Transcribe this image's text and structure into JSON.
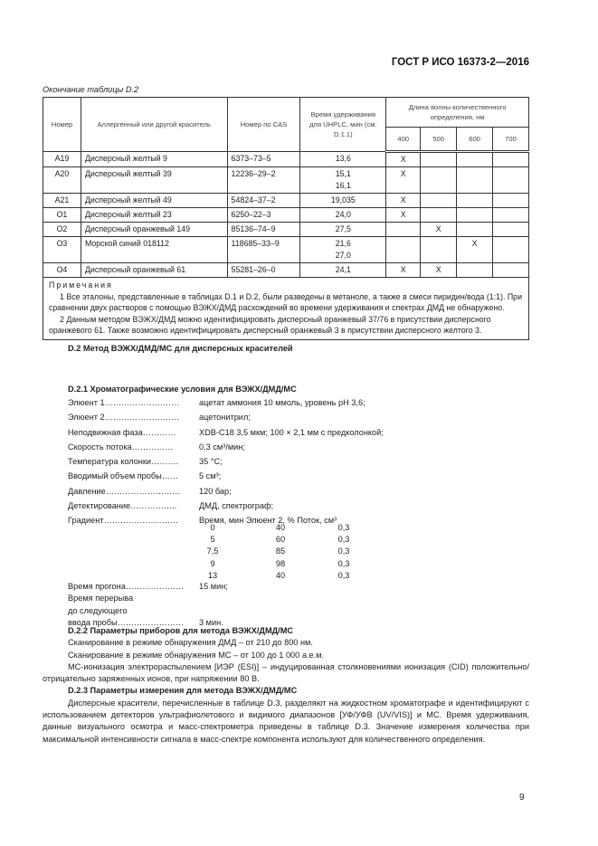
{
  "header": "ГОСТ Р ИСО 16373-2—2016",
  "caption": "Окончание таблицы D.2",
  "table": {
    "headers": {
      "num": "Номер",
      "dye": "Аллергенный или другой краситель",
      "cas": "Номер по CAS",
      "time": "Время удерживания для UHPLC, мин (см. D.1.1)",
      "wave": "Длина волны количественного определения, нм",
      "w400": "400",
      "w500": "500",
      "w600": "600",
      "w700": "700"
    },
    "rows": [
      {
        "num": "A19",
        "dye": "Дисперсный желтый 9",
        "cas": "6373–73–5",
        "time": "13,6",
        "w400": "X",
        "w500": "",
        "w600": "",
        "w700": ""
      },
      {
        "num": "A20",
        "dye": "Дисперсный желтый 39",
        "cas": "12236–29–2",
        "time": "15,1\n16,1",
        "w400": "X",
        "w500": "",
        "w600": "",
        "w700": ""
      },
      {
        "num": "A21",
        "dye": "Дисперсный желтый 49",
        "cas": "54824–37–2",
        "time": "19,035",
        "w400": "X",
        "w500": "",
        "w600": "",
        "w700": ""
      },
      {
        "num": "O1",
        "dye": "Дисперсный желтый 23",
        "cas": "6250–22–3",
        "time": "24,0",
        "w400": "X",
        "w500": "",
        "w600": "",
        "w700": ""
      },
      {
        "num": "O2",
        "dye": "Дисперсный оранжевый 149",
        "cas": "85136–74–9",
        "time": "27,5",
        "w400": "",
        "w500": "X",
        "w600": "",
        "w700": ""
      },
      {
        "num": "O3",
        "dye": "Морской синий 018112",
        "cas": "118685–33–9",
        "time": "21,6\n27,0",
        "w400": "",
        "w500": "",
        "w600": "X",
        "w700": ""
      },
      {
        "num": "O4",
        "dye": "Дисперсный оранжевый 61",
        "cas": "55281–26–0",
        "time": "24,1",
        "w400": "X",
        "w500": "X",
        "w600": "",
        "w700": ""
      }
    ],
    "notes_title": "Примечания",
    "note1": "1 Все эталоны, представленные в таблицах D.1 и D.2, были разведены в метаноле, а также в смеси пиридин/вода (1:1). При сравнении двух растворов с помощью ВЭЖХ/ДМД расхождений во времени удерживания и спектрах ДМД не обнаружено.",
    "note2": "2 Данным методом ВЭЖХ/ДМД можно идентифицировать дисперсный оранжевый 37/76 в присутствии дисперсного оранжевого 61. Также возможно идентифицировать дисперсный оранжевый 3 в присутствии дисперсного желтого 3."
  },
  "d2": "D.2 Метод ВЭЖХ/ДМД/МС для дисперсных красителей",
  "d21": "D.2.1 Хроматографические условия для ВЭЖХ/ДМД/МС",
  "conditions": [
    {
      "k": "Элюент 1………………………",
      "v": "ацетат аммония 10 ммоль, уровень pH 3,6;"
    },
    {
      "k": "Элюент 2………………………",
      "v": "ацетонитрил;"
    },
    {
      "k": "Неподвижная фаза…………",
      "v": "XDB-C18 3,5 мкм; 100 × 2,1 мм с предколонкой;"
    },
    {
      "k": "Скорость потока……………",
      "v": "0,3 см³/мин;"
    },
    {
      "k": "Температура колонки……….",
      "v": "35 °C;"
    },
    {
      "k": "Вводимый объем пробы……",
      "v": "5 см³;"
    },
    {
      "k": "Давление………………………",
      "v": "120 бар;"
    },
    {
      "k": "Детектирование……………..",
      "v": "ДМД, спектрограф;"
    },
    {
      "k": "Градиент………………………",
      "v": "Время, мин   Элюент 2, %    Поток, см³"
    }
  ],
  "gradient": [
    [
      "0",
      "40",
      "0,3"
    ],
    [
      "5",
      "60",
      "0,3"
    ],
    [
      "7,5",
      "85",
      "0,3"
    ],
    [
      "9",
      "98",
      "0,3"
    ],
    [
      "13",
      "40",
      "0,3"
    ]
  ],
  "run_time": {
    "k": "Время прогона…………………",
    "v": "15 мин;"
  },
  "pause": {
    "l1": "Время перерыва",
    "l2": "до следующего",
    "k": "ввода пробы……………………",
    "v": "3 мин."
  },
  "d22": "D.2.2  Параметры приборов для метода ВЭЖХ/ДМД/МС",
  "d22_p": [
    "Сканирование в режиме обнаружения ДМД – от 210  до 800 нм.",
    "Сканирование в режиме обнаружения МС – от 100 до 1 000 а.е.м.",
    "МС-ионизация электрораспылением [ИЭР (ESI)] – индуцированная столкновениями ионизация (CID) положительно/отрицательно заряженных ионов, при напряжении 80 В."
  ],
  "d23": "D.2.3  Параметры измерения для метода ВЭЖХ/ДМД/МС",
  "d23_p": "Дисперсные красители, перечисленные в таблице D.3, разделяют на жидкостном хроматографе и идентифицируют с использованием детекторов ультрафиолетового и видимого диапазонов [УФ/УФВ (UV/VIS)] и МС. Время удерживания, данные визуального осмотра и масс-спектрометра приведены в таблице D.3. Значение измерения количества при максимальной интенсивности сигнала в масс-спектре компонента используют для количественного определения.",
  "page_number": "9"
}
